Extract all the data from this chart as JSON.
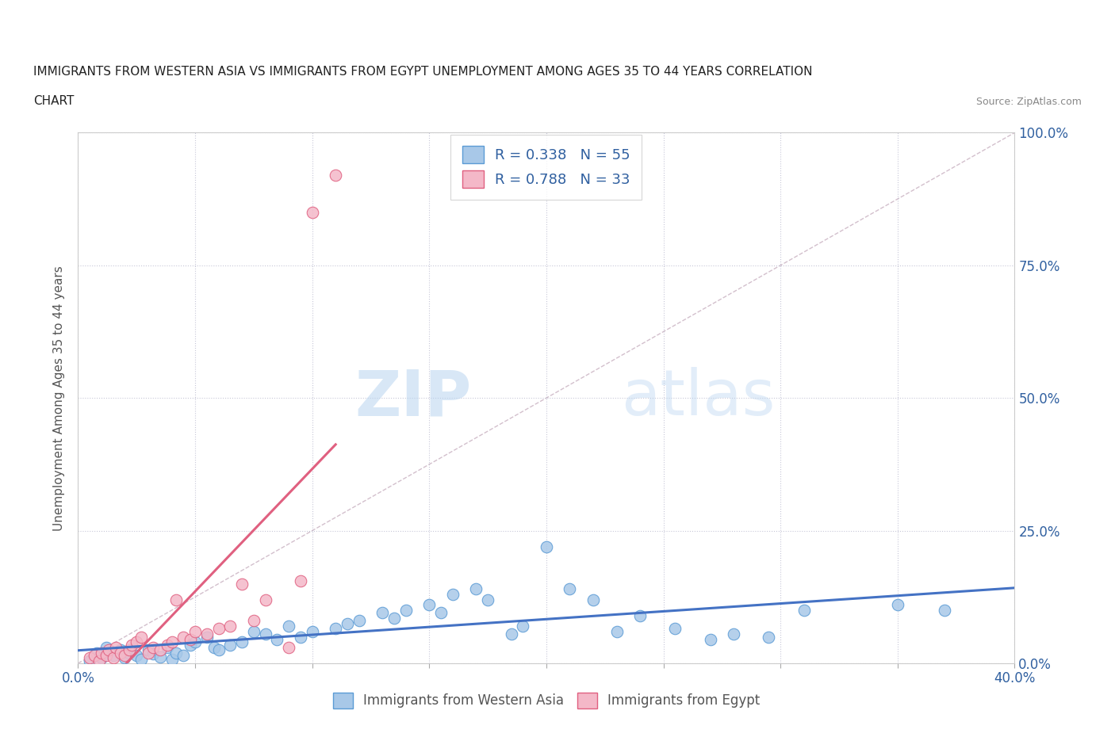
{
  "title_line1": "IMMIGRANTS FROM WESTERN ASIA VS IMMIGRANTS FROM EGYPT UNEMPLOYMENT AMONG AGES 35 TO 44 YEARS CORRELATION",
  "title_line2": "CHART",
  "source": "Source: ZipAtlas.com",
  "ylabel": "Unemployment Among Ages 35 to 44 years",
  "xlim": [
    0.0,
    0.4
  ],
  "ylim": [
    0.0,
    1.0
  ],
  "xticks": [
    0.0,
    0.05,
    0.1,
    0.15,
    0.2,
    0.25,
    0.3,
    0.35,
    0.4
  ],
  "yticks": [
    0.0,
    0.25,
    0.5,
    0.75,
    1.0
  ],
  "ytick_labels": [
    "0.0%",
    "25.0%",
    "50.0%",
    "75.0%",
    "100.0%"
  ],
  "western_asia_color": "#a8c8e8",
  "western_asia_edge": "#5b9bd5",
  "egypt_color": "#f4b8c8",
  "egypt_edge": "#e06080",
  "trendline_western": "#4472c4",
  "trendline_egypt": "#e06080",
  "diagonal_color": "#c8b0c0",
  "R_western": 0.338,
  "N_western": 55,
  "R_egypt": 0.788,
  "N_egypt": 33,
  "legend_label_western": "Immigrants from Western Asia",
  "legend_label_egypt": "Immigrants from Egypt",
  "watermark_zip": "ZIP",
  "watermark_atlas": "atlas",
  "western_asia_x": [
    0.005,
    0.008,
    0.01,
    0.012,
    0.015,
    0.018,
    0.02,
    0.022,
    0.025,
    0.027,
    0.03,
    0.032,
    0.035,
    0.038,
    0.04,
    0.042,
    0.045,
    0.048,
    0.05,
    0.055,
    0.058,
    0.06,
    0.065,
    0.07,
    0.075,
    0.08,
    0.085,
    0.09,
    0.095,
    0.1,
    0.11,
    0.115,
    0.12,
    0.13,
    0.135,
    0.14,
    0.15,
    0.155,
    0.16,
    0.17,
    0.175,
    0.185,
    0.19,
    0.2,
    0.21,
    0.22,
    0.23,
    0.24,
    0.255,
    0.27,
    0.28,
    0.295,
    0.31,
    0.35,
    0.37
  ],
  "western_asia_y": [
    0.005,
    0.02,
    0.01,
    0.03,
    0.015,
    0.025,
    0.01,
    0.02,
    0.015,
    0.008,
    0.025,
    0.018,
    0.012,
    0.03,
    0.008,
    0.02,
    0.015,
    0.035,
    0.04,
    0.05,
    0.03,
    0.025,
    0.035,
    0.04,
    0.06,
    0.055,
    0.045,
    0.07,
    0.05,
    0.06,
    0.065,
    0.075,
    0.08,
    0.095,
    0.085,
    0.1,
    0.11,
    0.095,
    0.13,
    0.14,
    0.12,
    0.055,
    0.07,
    0.22,
    0.14,
    0.12,
    0.06,
    0.09,
    0.065,
    0.045,
    0.055,
    0.05,
    0.1,
    0.11,
    0.1
  ],
  "egypt_x": [
    0.005,
    0.007,
    0.009,
    0.01,
    0.012,
    0.013,
    0.015,
    0.016,
    0.018,
    0.02,
    0.022,
    0.023,
    0.025,
    0.027,
    0.03,
    0.032,
    0.035,
    0.038,
    0.04,
    0.042,
    0.045,
    0.048,
    0.05,
    0.055,
    0.06,
    0.065,
    0.07,
    0.075,
    0.08,
    0.09,
    0.095,
    0.1,
    0.11
  ],
  "egypt_y": [
    0.01,
    0.015,
    0.005,
    0.02,
    0.015,
    0.025,
    0.01,
    0.03,
    0.02,
    0.015,
    0.025,
    0.035,
    0.04,
    0.05,
    0.02,
    0.03,
    0.025,
    0.035,
    0.04,
    0.12,
    0.05,
    0.045,
    0.06,
    0.055,
    0.065,
    0.07,
    0.15,
    0.08,
    0.12,
    0.03,
    0.155,
    0.85,
    0.92
  ]
}
